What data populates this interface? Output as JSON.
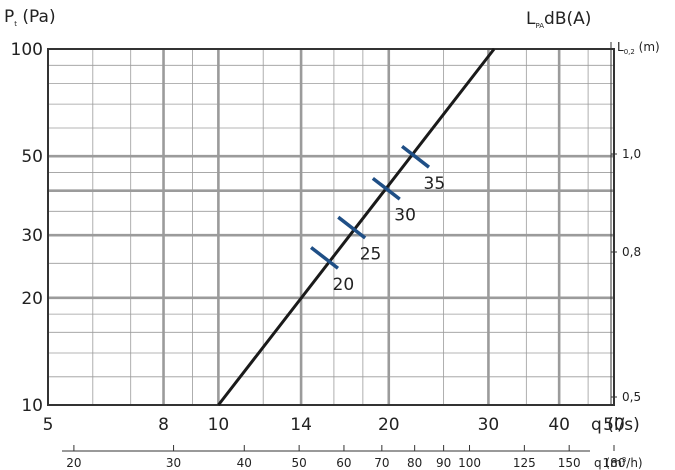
{
  "chart_data": {
    "type": "line",
    "colors": {
      "line": "#1a1a1a",
      "markers": "#1f4f86",
      "grid": "#9b9b9b",
      "axis": "#333333"
    },
    "y_title": {
      "main": "P",
      "sub": "t",
      "rest": " (Pa)"
    },
    "x_title": "q (l/s)",
    "x2_title": {
      "main": "q (m",
      "sup": "3",
      "rest": "/h)"
    },
    "right_title": {
      "main": "L",
      "sub": "PA",
      "rest": "dB(A)"
    },
    "right_axis_title": {
      "main": "L",
      "sub": "0,2",
      "rest": " (m)"
    },
    "xscale": "log",
    "yscale": "log",
    "xlim": [
      5,
      50
    ],
    "ylim": [
      10,
      100
    ],
    "grid": true,
    "x_ticks": [
      "5",
      "8",
      "10",
      "14",
      "20",
      "30",
      "40",
      "50"
    ],
    "x2_ticks": [
      "20",
      "30",
      "40",
      "50",
      "60",
      "70",
      "80",
      "90",
      "100",
      "125",
      "150",
      "180"
    ],
    "y_ticks": [
      "10",
      "20",
      "30",
      "50",
      "100"
    ],
    "right_ticks": [
      "0,5",
      "0,8",
      "1,0"
    ],
    "series": [
      {
        "x": [
          10,
          30.7
        ],
        "y": [
          10,
          100
        ]
      }
    ],
    "sound_markers": [
      {
        "label": "20",
        "x": 15.4,
        "y": 25.9
      },
      {
        "label": "25",
        "x": 17.2,
        "y": 31.5
      },
      {
        "label": "30",
        "x": 19.8,
        "y": 40.5
      },
      {
        "label": "35",
        "x": 22.3,
        "y": 49.8
      }
    ]
  }
}
